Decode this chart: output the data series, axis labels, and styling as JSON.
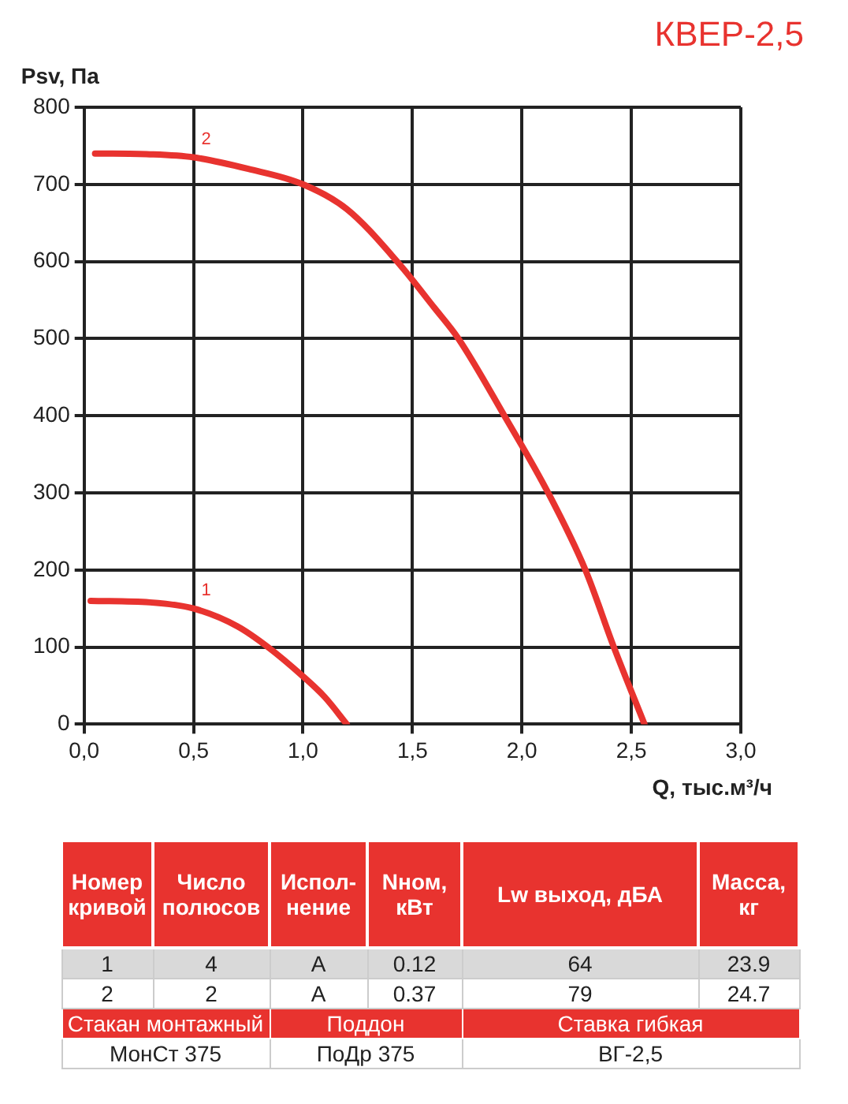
{
  "chart_data": [
    {
      "type": "line",
      "title": "КВЕР-2,5",
      "xlabel": "Q, тыс.м³/ч",
      "ylabel": "Psv, Па",
      "xlim": [
        0,
        3
      ],
      "ylim": [
        0,
        800
      ],
      "xticks": [
        {
          "value": 0,
          "label": "0,0"
        },
        {
          "value": 0.5,
          "label": "0,5"
        },
        {
          "value": 1,
          "label": "1,0"
        },
        {
          "value": 1.5,
          "label": "1,5"
        },
        {
          "value": 2,
          "label": "2,0"
        },
        {
          "value": 2.5,
          "label": "2,5"
        },
        {
          "value": 3,
          "label": "3,0"
        }
      ],
      "yticks": [
        0,
        100,
        200,
        300,
        400,
        500,
        600,
        700,
        800
      ],
      "grid": true,
      "legend": false,
      "marker": "none",
      "line_style": "solid",
      "series": [
        {
          "name": "1",
          "color": "#e8332f",
          "x": [
            0.03,
            0.3,
            0.5,
            0.7,
            0.84,
            1.0,
            1.1,
            1.2
          ],
          "values": [
            160,
            158,
            150,
            127,
            100,
            62,
            35,
            0
          ]
        },
        {
          "name": "2",
          "color": "#e8332f",
          "x": [
            0.05,
            0.3,
            0.5,
            0.75,
            1.0,
            1.2,
            1.43,
            1.6,
            1.71,
            1.92,
            2.12,
            2.29,
            2.42,
            2.56
          ],
          "values": [
            740,
            739,
            735,
            720,
            700,
            668,
            600,
            540,
            500,
            400,
            300,
            200,
            100,
            0
          ]
        }
      ]
    },
    {
      "type": "other",
      "annotations": [
        "Номер кривой",
        "Число полюсов",
        "Испол-нение",
        "Nном, кВт",
        "Lw выход, дБА",
        "Масса, кг",
        "1",
        "4",
        "А",
        "0.12",
        "64",
        "23.9",
        "2",
        "2",
        "А",
        "0.37",
        "79",
        "24.7",
        "Стакан монтажный",
        "Поддон",
        "Ставка гибкая",
        "МонСт 375",
        "ПоДр 375",
        "ВГ-2,5"
      ]
    }
  ]
}
